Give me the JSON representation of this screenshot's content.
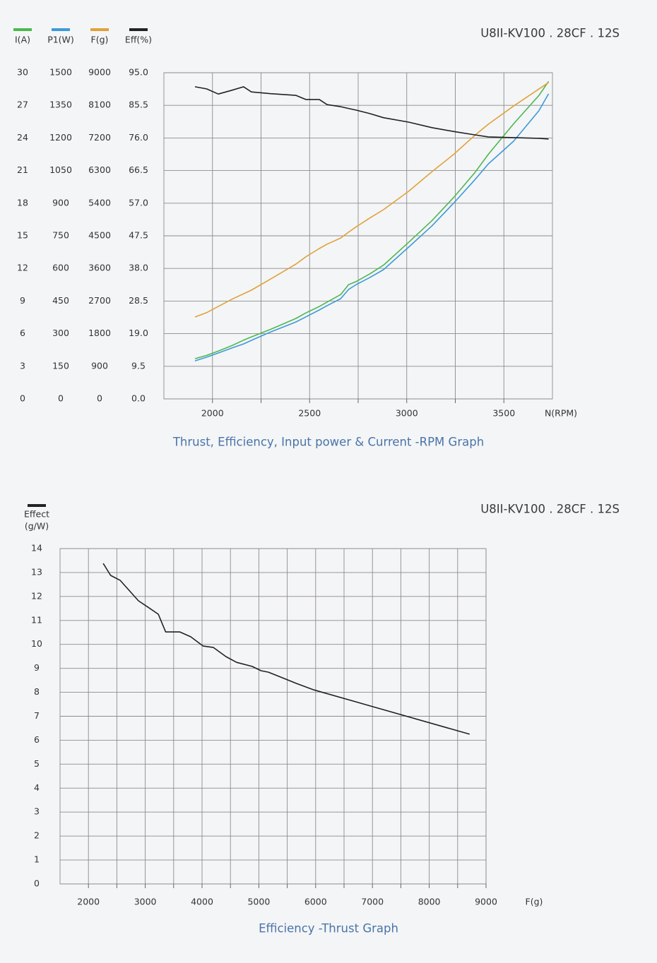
{
  "chart_data": [
    {
      "type": "line",
      "title": "U8II-KV100 . 28CF . 12S",
      "caption": "Thrust, Efficiency, Input power & Current -RPM Graph",
      "xlabel": "N(RPM)",
      "x": [
        1910,
        1970,
        2030,
        2100,
        2160,
        2200,
        2300,
        2430,
        2480,
        2550,
        2590,
        2660,
        2700,
        2740,
        2810,
        2880,
        3010,
        3130,
        3240,
        3350,
        3420,
        3550,
        3680,
        3730
      ],
      "xlim": [
        1750,
        3750
      ],
      "xticks": [
        2000,
        2500,
        3000,
        3500
      ],
      "x_minor_ticks": [
        2250,
        2750,
        3250
      ],
      "grid": true,
      "y_axes": [
        {
          "lim": [
            0,
            30
          ],
          "ticks": [
            0,
            3,
            6,
            9,
            12,
            15,
            18,
            21,
            24,
            27,
            30
          ]
        },
        {
          "lim": [
            0,
            1500
          ],
          "ticks": [
            0,
            150,
            300,
            450,
            600,
            750,
            900,
            1050,
            1200,
            1350,
            1500
          ]
        },
        {
          "lim": [
            0,
            9000
          ],
          "ticks": [
            0,
            900,
            1800,
            2700,
            3600,
            4500,
            5400,
            6300,
            7200,
            8100,
            9000
          ]
        },
        {
          "lim": [
            0,
            95
          ],
          "ticks": [
            {
              "value": 0,
              "label": "0.0"
            },
            9.5,
            {
              "value": 19,
              "label": "19.0"
            },
            28.5,
            {
              "value": 38,
              "label": "38.0"
            },
            47.5,
            {
              "value": 57,
              "label": "57.0"
            },
            66.5,
            {
              "value": 76,
              "label": "76.0"
            },
            85.5,
            {
              "value": 95,
              "label": "95.0"
            }
          ]
        }
      ],
      "series": [
        {
          "name": "I(A)",
          "color": "#4cb84f",
          "axis": 0,
          "values": [
            3.7,
            4.0,
            4.4,
            4.9,
            5.4,
            5.7,
            6.4,
            7.4,
            7.9,
            8.5,
            8.9,
            9.6,
            10.5,
            10.8,
            11.5,
            12.3,
            14.4,
            16.4,
            18.5,
            20.8,
            22.5,
            25.3,
            27.9,
            29.2
          ]
        },
        {
          "name": "P1(W)",
          "color": "#3d9ad8",
          "axis": 1,
          "values": [
            175,
            192,
            211,
            234,
            253,
            269,
            308,
            354,
            377,
            409,
            429,
            461,
            503,
            526,
            558,
            594,
            698,
            796,
            899,
            1007,
            1081,
            1185,
            1325,
            1403
          ]
        },
        {
          "name": "F(g)",
          "color": "#e0a23a",
          "axis": 2,
          "values": [
            2260,
            2380,
            2550,
            2750,
            2900,
            3000,
            3310,
            3720,
            3920,
            4150,
            4270,
            4440,
            4600,
            4750,
            4990,
            5220,
            5730,
            6270,
            6740,
            7270,
            7580,
            8080,
            8550,
            8730
          ]
        },
        {
          "name": "Eff(%)",
          "color": "#222222",
          "axis": 3,
          "values": [
            90.9,
            90.3,
            88.8,
            89.9,
            90.9,
            89.4,
            88.9,
            88.4,
            87.2,
            87.2,
            85.7,
            85.1,
            84.6,
            84.1,
            83.1,
            81.9,
            80.6,
            79.0,
            77.9,
            76.9,
            76.3,
            76.1,
            75.9,
            75.7
          ]
        }
      ]
    },
    {
      "type": "line",
      "title": "U8II-KV100 . 28CF . 12S",
      "caption": "Efficiency -Thrust Graph",
      "xlabel": "F(g)",
      "ylabel": "(g/W)",
      "x": [
        2260,
        2390,
        2560,
        2880,
        3050,
        3230,
        3360,
        3610,
        3800,
        4020,
        4200,
        4420,
        4610,
        4880,
        5040,
        5170,
        5410,
        5660,
        5970,
        8710
      ],
      "xlim": [
        1500,
        9000
      ],
      "xticks": [
        2000,
        3000,
        4000,
        5000,
        6000,
        7000,
        8000,
        9000
      ],
      "x_minor_ticks": [
        2500,
        3500,
        4500,
        5500,
        6500,
        7500,
        8500
      ],
      "ylim": [
        0,
        14
      ],
      "yticks": [
        0,
        1,
        2,
        3,
        4,
        5,
        6,
        7,
        8,
        9,
        10,
        11,
        12,
        13,
        14
      ],
      "grid": true,
      "series": [
        {
          "name": "Effect",
          "color": "#222222",
          "values": [
            13.38,
            12.88,
            12.67,
            11.82,
            11.55,
            11.26,
            10.52,
            10.52,
            10.32,
            9.93,
            9.87,
            9.49,
            9.25,
            9.08,
            8.9,
            8.84,
            8.61,
            8.37,
            8.1,
            6.25
          ]
        }
      ]
    }
  ]
}
